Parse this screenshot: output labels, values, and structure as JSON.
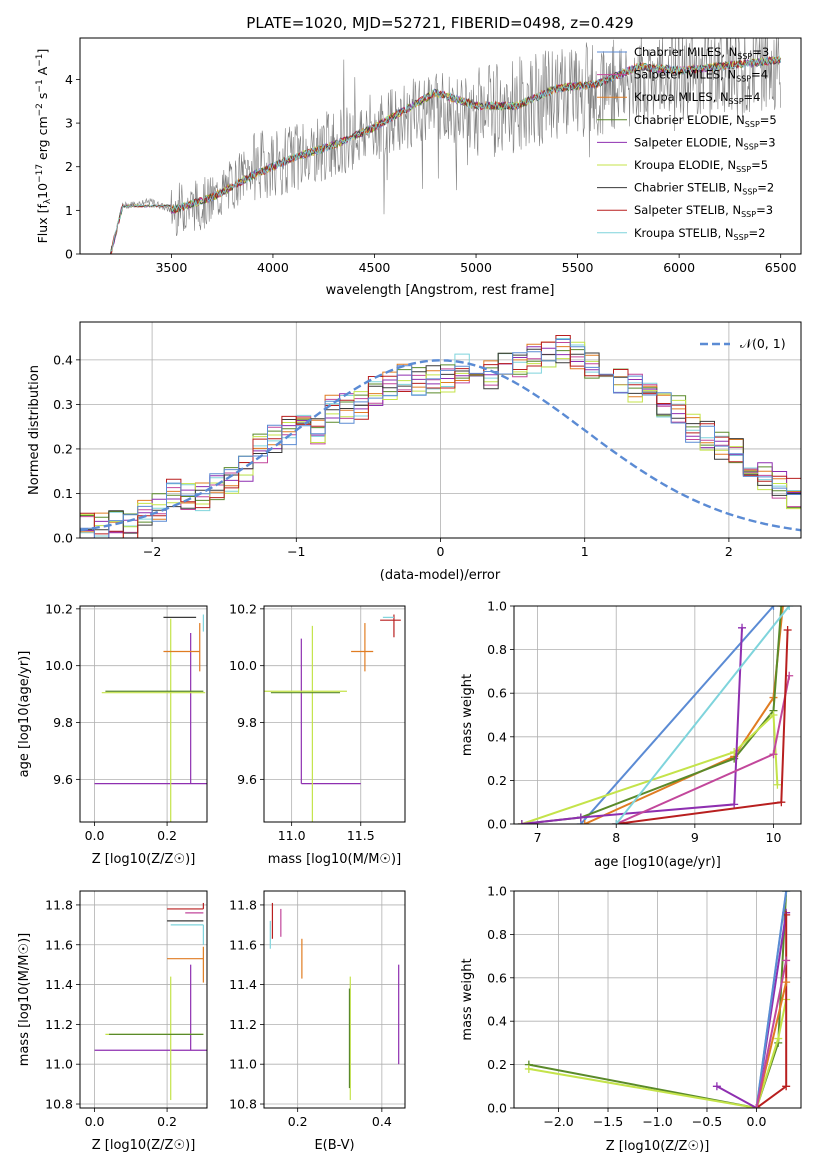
{
  "figure_title": "PLATE=1020, MJD=52721, FIBERID=0498, z=0.429",
  "colors": {
    "chabrier_miles": "#5b8bd4",
    "salpeter_miles": "#c2479b",
    "kroupa_miles": "#e07c22",
    "chabrier_elodie": "#5a8a2a",
    "salpeter_elodie": "#8e2fb0",
    "kroupa_elodie": "#c4e34a",
    "chabrier_stelib": "#3a3a3a",
    "salpeter_stelib": "#b81f1f",
    "kroupa_stelib": "#7fd4dc",
    "observed": "#808080",
    "normal": "#5b8bd4"
  },
  "chart_data": [
    {
      "type": "line",
      "panel": "spectrum",
      "title": "PLATE=1020, MJD=52721, FIBERID=0498, z=0.429",
      "xlabel": "wavelength [Angstrom, rest frame]",
      "ylabel": "Flux [f_λ 10^-17 erg cm^-2 s^-1 A^-1]",
      "xlim": [
        3050,
        6600
      ],
      "ylim": [
        0,
        4.95
      ],
      "xticks": [
        "3500",
        "4000",
        "4500",
        "5000",
        "5500",
        "6000",
        "6500"
      ],
      "yticks": [
        "0",
        "1",
        "2",
        "3",
        "4"
      ],
      "legend_position": "top-right",
      "observed_envelope": {
        "x": [
          3200,
          3260,
          3400,
          3500,
          3700,
          3900,
          4100,
          4500,
          4800,
          5000,
          5200,
          5400,
          5600,
          5800,
          6000,
          6200,
          6500
        ],
        "y": [
          0.0,
          1.1,
          1.2,
          1.0,
          1.2,
          2.0,
          2.2,
          2.9,
          3.4,
          3.2,
          3.4,
          3.7,
          3.8,
          4.0,
          4.1,
          4.2,
          4.3
        ]
      },
      "model_curve": {
        "x": [
          3200,
          3260,
          3400,
          3500,
          3700,
          3900,
          4100,
          4300,
          4500,
          4800,
          5000,
          5200,
          5400,
          5600,
          5800,
          6000,
          6200,
          6500
        ],
        "y": [
          0.0,
          1.1,
          1.2,
          1.0,
          1.3,
          1.8,
          2.2,
          2.5,
          2.9,
          3.7,
          3.4,
          3.4,
          3.8,
          3.9,
          4.3,
          4.2,
          4.3,
          4.45
        ]
      },
      "series": [
        {
          "name": "Chabrier MILES, N_SSP=3",
          "name_main": "Chabrier MILES, N",
          "name_sub": "SSP",
          "name_tail": "=3",
          "color_key": "chabrier_miles"
        },
        {
          "name": "Salpeter MILES, N_SSP=4",
          "name_main": "Salpeter MILES, N",
          "name_sub": "SSP",
          "name_tail": "=4",
          "color_key": "salpeter_miles"
        },
        {
          "name": "Kroupa MILES, N_SSP=4",
          "name_main": "Kroupa MILES, N",
          "name_sub": "SSP",
          "name_tail": "=4",
          "color_key": "kroupa_miles"
        },
        {
          "name": "Chabrier ELODIE, N_SSP=5",
          "name_main": "Chabrier ELODIE, N",
          "name_sub": "SSP",
          "name_tail": "=5",
          "color_key": "chabrier_elodie"
        },
        {
          "name": "Salpeter ELODIE, N_SSP=3",
          "name_main": "Salpeter ELODIE, N",
          "name_sub": "SSP",
          "name_tail": "=3",
          "color_key": "salpeter_elodie"
        },
        {
          "name": "Kroupa ELODIE, N_SSP=5",
          "name_main": "Kroupa ELODIE, N",
          "name_sub": "SSP",
          "name_tail": "=5",
          "color_key": "kroupa_elodie"
        },
        {
          "name": "Chabrier STELIB, N_SSP=2",
          "name_main": "Chabrier STELIB, N",
          "name_sub": "SSP",
          "name_tail": "=2",
          "color_key": "chabrier_stelib"
        },
        {
          "name": "Salpeter STELIB, N_SSP=3",
          "name_main": "Salpeter STELIB, N",
          "name_sub": "SSP",
          "name_tail": "=3",
          "color_key": "salpeter_stelib"
        },
        {
          "name": "Kroupa STELIB, N_SSP=2",
          "name_main": "Kroupa STELIB, N",
          "name_sub": "SSP",
          "name_tail": "=2",
          "color_key": "kroupa_stelib"
        }
      ]
    },
    {
      "type": "line",
      "panel": "residuals",
      "xlabel": "(data-model)/error",
      "ylabel": "Normed distribution",
      "xlim": [
        -2.5,
        2.5
      ],
      "ylim": [
        0,
        0.485
      ],
      "xticks": [
        -2,
        -1,
        0,
        1,
        2
      ],
      "xtick_labels": [
        "−2",
        "−1",
        "0",
        "1",
        "2"
      ],
      "yticks": [
        0.0,
        0.1,
        0.2,
        0.3,
        0.4
      ],
      "ytick_labels": [
        "0.0",
        "0.1",
        "0.2",
        "0.3",
        "0.4"
      ],
      "grid": true,
      "legend_position": "top-right",
      "legend_label": "𝒩(0, 1)",
      "bin_width": 0.1,
      "bin_start": -2.5,
      "histogram": [
        0.03,
        0.03,
        0.03,
        0.03,
        0.05,
        0.07,
        0.1,
        0.09,
        0.09,
        0.12,
        0.13,
        0.16,
        0.2,
        0.22,
        0.24,
        0.25,
        0.24,
        0.29,
        0.29,
        0.3,
        0.33,
        0.34,
        0.36,
        0.35,
        0.36,
        0.36,
        0.38,
        0.39,
        0.37,
        0.39,
        0.39,
        0.4,
        0.41,
        0.42,
        0.41,
        0.39,
        0.36,
        0.36,
        0.34,
        0.32,
        0.3,
        0.29,
        0.25,
        0.23,
        0.21,
        0.19,
        0.16,
        0.14,
        0.12,
        0.1,
        0.08
      ]
    },
    {
      "type": "scatter",
      "panel": "age_vs_Z",
      "xlabel": "Z [log10(Z/Z☉)]",
      "ylabel": "age [log10(age/yr)]",
      "xlim": [
        -0.04,
        0.31
      ],
      "ylim": [
        9.45,
        10.21
      ],
      "xticks": [
        0.0,
        0.2
      ],
      "xtick_labels": [
        "0.0",
        "0.2"
      ],
      "yticks": [
        9.6,
        9.8,
        10.0,
        10.2
      ],
      "ytick_labels": [
        "9.6",
        "9.8",
        "10.0",
        "10.2"
      ],
      "grid": true,
      "points": [
        {
          "x": 0.2,
          "y": 9.585,
          "xerr": [
            0.2,
            0.12
          ],
          "yerr": [
            0.0,
            0.0
          ],
          "color_key": "salpeter_elodie"
        },
        {
          "x": 0.265,
          "y": 9.585,
          "xerr": [
            0.0,
            0.0
          ],
          "yerr": [
            0.0,
            0.53
          ],
          "color_key": "salpeter_elodie"
        },
        {
          "x": 0.21,
          "y": 9.905,
          "xerr": [
            0.19,
            0.095
          ],
          "yerr": [
            0.46,
            0.26
          ],
          "color_key": "kroupa_elodie"
        },
        {
          "x": 0.21,
          "y": 9.91,
          "xerr": [
            0.18,
            0.09
          ],
          "yerr": [
            0.0,
            0.0
          ],
          "color_key": "chabrier_elodie"
        },
        {
          "x": 0.29,
          "y": 10.05,
          "xerr": [
            0.1,
            0.0
          ],
          "yerr": [
            0.07,
            0.1
          ],
          "color_key": "kroupa_miles"
        },
        {
          "x": 0.28,
          "y": 10.17,
          "xerr": [
            0.09,
            0.0
          ],
          "yerr": [
            0.0,
            0.0
          ],
          "color_key": "chabrier_stelib"
        },
        {
          "x": 0.3,
          "y": 10.18,
          "xerr": [
            0.0,
            0.0
          ],
          "yerr": [
            0.06,
            0.0
          ],
          "color_key": "kroupa_stelib"
        }
      ]
    },
    {
      "type": "scatter",
      "panel": "age_vs_mass",
      "xlabel": "mass [log10(M/M☉)]",
      "xlim": [
        10.8,
        11.82
      ],
      "ylim": [
        9.45,
        10.21
      ],
      "xticks": [
        11.0,
        11.5
      ],
      "xtick_labels": [
        "11.0",
        "11.5"
      ],
      "yticks": [
        9.6,
        9.8,
        10.0,
        10.2
      ],
      "ytick_labels": [
        "9.6",
        "9.8",
        "10.0",
        "10.2"
      ],
      "grid": true,
      "points": [
        {
          "x": 11.07,
          "y": 9.585,
          "xerr": [
            0.0,
            0.43
          ],
          "yerr": [
            0.0,
            0.51
          ],
          "color_key": "salpeter_elodie"
        },
        {
          "x": 11.15,
          "y": 9.91,
          "xerr": [
            0.35,
            0.25
          ],
          "yerr": [
            0.46,
            0.23
          ],
          "color_key": "kroupa_elodie"
        },
        {
          "x": 11.15,
          "y": 9.905,
          "xerr": [
            0.3,
            0.2
          ],
          "yerr": [
            0.0,
            0.0
          ],
          "color_key": "chabrier_elodie"
        },
        {
          "x": 11.53,
          "y": 10.05,
          "xerr": [
            0.1,
            0.06
          ],
          "yerr": [
            0.07,
            0.1
          ],
          "color_key": "kroupa_miles"
        },
        {
          "x": 11.74,
          "y": 10.16,
          "xerr": [
            0.1,
            0.05
          ],
          "yerr": [
            0.06,
            0.02
          ],
          "color_key": "salpeter_stelib"
        },
        {
          "x": 11.7,
          "y": 10.17,
          "xerr": [
            0.04,
            0.04
          ],
          "yerr": [
            0.0,
            0.0
          ],
          "color_key": "kroupa_stelib"
        }
      ]
    },
    {
      "type": "line",
      "panel": "mass_weight_vs_age",
      "xlabel": "age [log10(age/yr)]",
      "ylabel": "mass weight",
      "xlim": [
        6.7,
        10.35
      ],
      "ylim": [
        0,
        1
      ],
      "xticks": [
        7,
        8,
        9,
        10
      ],
      "xtick_labels": [
        "7",
        "8",
        "9",
        "10"
      ],
      "yticks": [
        0.0,
        0.2,
        0.4,
        0.6,
        0.8,
        1.0
      ],
      "ytick_labels": [
        "0.0",
        "0.2",
        "0.4",
        "0.6",
        "0.8",
        "1.0"
      ],
      "grid": true,
      "series": [
        {
          "color_key": "chabrier_miles",
          "x": [
            7.55,
            10.0
          ],
          "y": [
            0.0,
            1.0
          ]
        },
        {
          "color_key": "kroupa_miles",
          "x": [
            7.6,
            9.5,
            10.0,
            10.12
          ],
          "y": [
            0.0,
            0.31,
            0.58,
            1.0
          ]
        },
        {
          "color_key": "chabrier_elodie",
          "x": [
            6.8,
            7.55,
            9.5,
            10.0,
            10.1
          ],
          "y": [
            0.0,
            0.03,
            0.3,
            0.52,
            1.0
          ]
        },
        {
          "color_key": "kroupa_elodie",
          "x": [
            6.8,
            9.5,
            10.0,
            10.05
          ],
          "y": [
            0.0,
            0.33,
            0.5,
            0.18
          ]
        },
        {
          "color_key": "salpeter_elodie",
          "x": [
            6.8,
            7.55,
            9.5,
            9.6
          ],
          "y": [
            0.0,
            0.03,
            0.09,
            0.9
          ]
        },
        {
          "color_key": "salpeter_miles",
          "x": [
            8.0,
            10.0,
            10.2
          ],
          "y": [
            0.0,
            0.32,
            0.68
          ]
        },
        {
          "color_key": "salpeter_stelib",
          "x": [
            8.0,
            10.1,
            10.18
          ],
          "y": [
            0.0,
            0.1,
            0.89
          ]
        },
        {
          "color_key": "kroupa_stelib",
          "x": [
            8.0,
            10.2
          ],
          "y": [
            0.0,
            1.0
          ]
        }
      ]
    },
    {
      "type": "scatter",
      "panel": "mass_vs_Z",
      "xlabel": "Z [log10(Z/Z☉)]",
      "ylabel": "mass [log10(M/M☉)]",
      "xlim": [
        -0.04,
        0.31
      ],
      "ylim": [
        10.78,
        11.87
      ],
      "xticks": [
        0.0,
        0.2
      ],
      "xtick_labels": [
        "0.0",
        "0.2"
      ],
      "yticks": [
        10.8,
        11.0,
        11.2,
        11.4,
        11.6,
        11.8
      ],
      "ytick_labels": [
        "10.8",
        "11.0",
        "11.2",
        "11.4",
        "11.6",
        "11.8"
      ],
      "grid": true,
      "points": [
        {
          "x": 0.2,
          "y": 11.07,
          "xerr": [
            0.2,
            0.12
          ],
          "yerr": [
            0.0,
            0.0
          ],
          "color_key": "salpeter_elodie"
        },
        {
          "x": 0.265,
          "y": 11.07,
          "xerr": [
            0.0,
            0.0
          ],
          "yerr": [
            0.0,
            0.43
          ],
          "color_key": "salpeter_elodie"
        },
        {
          "x": 0.21,
          "y": 11.15,
          "xerr": [
            0.18,
            0.09
          ],
          "yerr": [
            0.33,
            0.29
          ],
          "color_key": "kroupa_elodie"
        },
        {
          "x": 0.21,
          "y": 11.15,
          "xerr": [
            0.17,
            0.09
          ],
          "yerr": [
            0.0,
            0.0
          ],
          "color_key": "chabrier_elodie"
        },
        {
          "x": 0.3,
          "y": 11.53,
          "xerr": [
            0.1,
            0.0
          ],
          "yerr": [
            0.12,
            0.06
          ],
          "color_key": "kroupa_miles"
        },
        {
          "x": 0.3,
          "y": 11.72,
          "xerr": [
            0.1,
            0.0
          ],
          "yerr": [
            0.0,
            0.0
          ],
          "color_key": "chabrier_stelib"
        },
        {
          "x": 0.3,
          "y": 11.78,
          "xerr": [
            0.1,
            0.0
          ],
          "yerr": [
            0.0,
            0.03
          ],
          "color_key": "salpeter_stelib"
        },
        {
          "x": 0.3,
          "y": 11.76,
          "xerr": [
            0.05,
            0.0
          ],
          "yerr": [
            0.0,
            0.0
          ],
          "color_key": "salpeter_miles"
        },
        {
          "x": 0.3,
          "y": 11.7,
          "xerr": [
            0.09,
            0.0
          ],
          "yerr": [
            0.1,
            0.0
          ],
          "color_key": "kroupa_stelib"
        }
      ]
    },
    {
      "type": "scatter",
      "panel": "mass_vs_ebv",
      "xlabel": "E(B-V)",
      "xlim": [
        0.12,
        0.455
      ],
      "ylim": [
        10.78,
        11.87
      ],
      "xticks": [
        0.2,
        0.4
      ],
      "xtick_labels": [
        "0.2",
        "0.4"
      ],
      "yticks": [
        10.8,
        11.0,
        11.2,
        11.4,
        11.6,
        11.8
      ],
      "ytick_labels": [
        "10.8",
        "11.0",
        "11.2",
        "11.4",
        "11.6",
        "11.8"
      ],
      "grid": true,
      "points": [
        {
          "x": 0.44,
          "y": 11.25,
          "xerr": [
            0.0,
            0.0
          ],
          "yerr": [
            0.25,
            0.25
          ],
          "color_key": "salpeter_elodie"
        },
        {
          "x": 0.325,
          "y": 11.13,
          "xerr": [
            0.0,
            0.0
          ],
          "yerr": [
            0.31,
            0.31
          ],
          "color_key": "kroupa_elodie"
        },
        {
          "x": 0.323,
          "y": 11.13,
          "xerr": [
            0.0,
            0.0
          ],
          "yerr": [
            0.25,
            0.25
          ],
          "color_key": "chabrier_elodie"
        },
        {
          "x": 0.21,
          "y": 11.53,
          "xerr": [
            0.0,
            0.0
          ],
          "yerr": [
            0.1,
            0.1
          ],
          "color_key": "kroupa_miles"
        },
        {
          "x": 0.14,
          "y": 11.72,
          "xerr": [
            0.0,
            0.0
          ],
          "yerr": [
            0.09,
            0.09
          ],
          "color_key": "salpeter_stelib"
        },
        {
          "x": 0.16,
          "y": 11.71,
          "xerr": [
            0.0,
            0.0
          ],
          "yerr": [
            0.07,
            0.07
          ],
          "color_key": "salpeter_miles"
        },
        {
          "x": 0.135,
          "y": 11.65,
          "xerr": [
            0.0,
            0.0
          ],
          "yerr": [
            0.07,
            0.07
          ],
          "color_key": "kroupa_stelib"
        }
      ]
    },
    {
      "type": "line",
      "panel": "mass_weight_vs_Z",
      "xlabel": "Z [log10(Z/Z☉)]",
      "ylabel": "mass weight",
      "xlim": [
        -2.45,
        0.45
      ],
      "ylim": [
        0,
        1
      ],
      "xticks": [
        -2.0,
        -1.5,
        -1.0,
        -0.5,
        0.0
      ],
      "xtick_labels": [
        "−2.0",
        "−1.5",
        "−1.0",
        "−0.5",
        "0.0"
      ],
      "yticks": [
        0.0,
        0.2,
        0.4,
        0.6,
        0.8,
        1.0
      ],
      "ytick_labels": [
        "0.0",
        "0.2",
        "0.4",
        "0.6",
        "0.8",
        "1.0"
      ],
      "grid": true,
      "series": [
        {
          "color_key": "chabrier_elodie",
          "x": [
            -2.3,
            0.0,
            0.22,
            0.3
          ],
          "y": [
            0.2,
            0.0,
            0.3,
            1.0
          ]
        },
        {
          "color_key": "kroupa_elodie",
          "x": [
            -2.3,
            0.0,
            0.22,
            0.3
          ],
          "y": [
            0.18,
            0.0,
            0.32,
            0.5
          ]
        },
        {
          "color_key": "salpeter_elodie",
          "x": [
            -0.4,
            0.0,
            0.3
          ],
          "y": [
            0.1,
            0.0,
            0.9
          ]
        },
        {
          "color_key": "salpeter_stelib",
          "x": [
            0.0,
            0.3,
            0.3
          ],
          "y": [
            0.0,
            0.1,
            0.89
          ]
        },
        {
          "color_key": "kroupa_stelib",
          "x": [
            0.0,
            0.3
          ],
          "y": [
            0.0,
            1.0
          ]
        },
        {
          "color_key": "chabrier_miles",
          "x": [
            0.0,
            0.3
          ],
          "y": [
            0.0,
            1.0
          ]
        },
        {
          "color_key": "kroupa_miles",
          "x": [
            0.0,
            0.3
          ],
          "y": [
            0.0,
            0.58
          ]
        },
        {
          "color_key": "salpeter_miles",
          "x": [
            0.0,
            0.3
          ],
          "y": [
            0.0,
            0.68
          ]
        }
      ]
    }
  ]
}
